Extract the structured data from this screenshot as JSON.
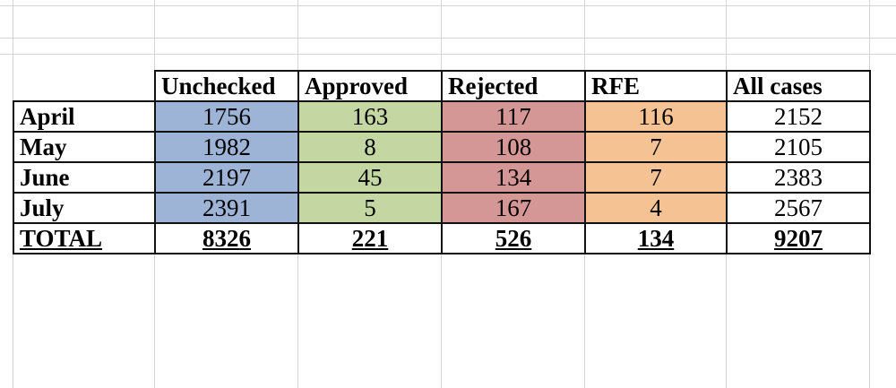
{
  "colors": {
    "unchecked": "#9eb4d6",
    "approved": "#c4d7a3",
    "rejected": "#d59796",
    "rfe": "#f4c293",
    "all_cases": "#ffffff"
  },
  "table": {
    "headers": [
      "Unchecked",
      "Approved",
      "Rejected",
      "RFE",
      "All cases"
    ],
    "rows": [
      {
        "label": "April",
        "values": [
          "1756",
          "163",
          "117",
          "116",
          "2152"
        ]
      },
      {
        "label": "May",
        "values": [
          "1982",
          "8",
          "108",
          "7",
          "2105"
        ]
      },
      {
        "label": "June",
        "values": [
          "2197",
          "45",
          "134",
          "7",
          "2383"
        ]
      },
      {
        "label": "July",
        "values": [
          "2391",
          "5",
          "167",
          "4",
          "2567"
        ]
      }
    ],
    "total": {
      "label": "TOTAL",
      "values": [
        "8326",
        "221",
        "526",
        "134",
        "9207"
      ]
    }
  }
}
